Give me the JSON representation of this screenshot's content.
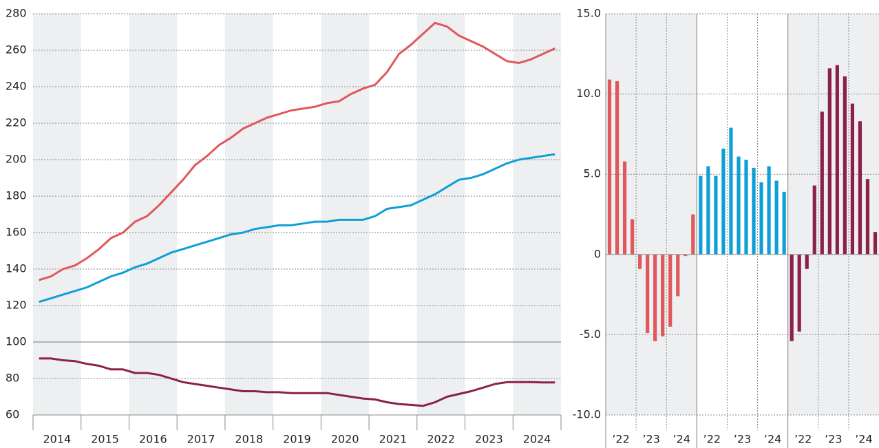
{
  "chart_data": [
    {
      "type": "line",
      "categories": [
        "2014",
        null,
        null,
        null,
        "2015",
        null,
        null,
        null,
        "2016",
        null,
        null,
        null,
        "2017",
        null,
        null,
        null,
        "2018",
        null,
        null,
        null,
        "2019",
        null,
        null,
        null,
        "2020",
        null,
        null,
        null,
        "2021",
        null,
        null,
        null,
        "2022",
        null,
        null,
        null,
        "2023",
        null,
        null,
        null,
        "2024",
        null,
        null,
        null
      ],
      "series": [
        {
          "color": "#e0575c",
          "values": [
            134,
            136,
            140,
            142,
            146,
            151,
            157,
            160,
            166,
            169,
            175,
            182,
            189,
            197,
            202,
            208,
            212,
            217,
            220,
            223,
            225,
            227,
            228,
            229,
            231,
            232,
            236,
            239,
            241,
            248,
            258,
            263,
            269,
            275,
            273,
            268,
            265,
            262,
            258,
            254,
            253,
            255,
            258,
            261
          ]
        },
        {
          "color": "#0e9fd8",
          "values": [
            122,
            124,
            126,
            128,
            130,
            133,
            136,
            138,
            141,
            143,
            146,
            149,
            151,
            153,
            155,
            157,
            159,
            160,
            162,
            163,
            164,
            164,
            165,
            166,
            166,
            167,
            167,
            167,
            169,
            173,
            174,
            175,
            178,
            181,
            185,
            189,
            190,
            192,
            195,
            198,
            200,
            201,
            202,
            203
          ]
        },
        {
          "color": "#8b2049",
          "values": [
            91,
            91,
            90,
            89.5,
            88,
            87,
            85,
            85,
            83,
            83,
            82,
            80,
            78,
            77,
            76,
            75,
            74,
            73,
            73,
            72.5,
            72.5,
            72,
            72,
            72,
            72,
            71,
            70,
            69,
            68.5,
            67,
            66,
            65.5,
            65,
            67,
            70,
            71.5,
            73,
            75,
            77,
            78,
            78,
            78,
            77.8,
            77.8
          ]
        }
      ],
      "ylim": [
        60,
        280
      ],
      "yticks": [
        60,
        80,
        100,
        120,
        140,
        160,
        180,
        200,
        220,
        240,
        260,
        280
      ],
      "hline": 100,
      "grid": true
    },
    {
      "type": "bar",
      "categories": [
        "’22",
        null,
        null,
        null,
        "’23",
        null,
        null,
        null,
        "’24",
        null,
        null,
        null
      ],
      "series": [
        {
          "color": "#e0575c",
          "values": [
            10.9,
            10.8,
            5.8,
            2.2,
            -0.9,
            -4.9,
            -5.4,
            -5.1,
            -4.5,
            -2.6,
            -0.1,
            2.5
          ]
        },
        {
          "color": "#0e9fd8",
          "values": [
            4.9,
            5.5,
            4.9,
            6.6,
            7.9,
            6.1,
            5.9,
            5.4,
            4.5,
            5.5,
            4.6,
            3.9
          ]
        },
        {
          "color": "#8b2049",
          "values": [
            -5.4,
            -4.8,
            -0.9,
            4.3,
            8.9,
            11.6,
            11.8,
            11.1,
            9.4,
            8.3,
            4.7,
            1.4
          ]
        }
      ],
      "ylim": [
        -10,
        15
      ],
      "yticks": [
        {
          "value": -10,
          "label": "-10.0"
        },
        {
          "value": -5,
          "label": "-5.0"
        },
        0,
        {
          "value": 5,
          "label": "5.0"
        },
        {
          "value": 10,
          "label": "10.0"
        },
        {
          "value": 15,
          "label": "15.0"
        }
      ],
      "grid": true
    }
  ]
}
